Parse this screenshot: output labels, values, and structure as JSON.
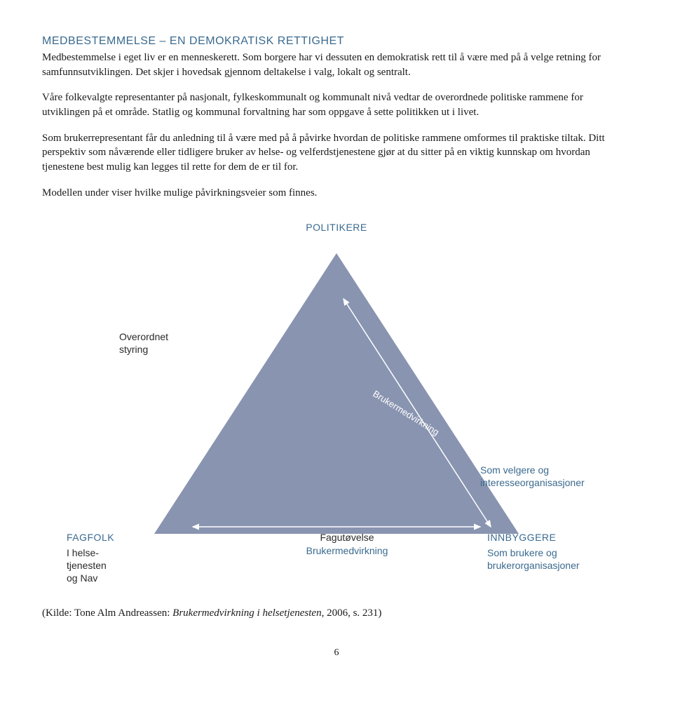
{
  "heading": "MEDBESTEMMELSE – EN DEMOKRATISK RETTIGHET",
  "para1": "Medbestemmelse i eget liv er en menneskerett. Som borgere har vi dessuten en demokratisk rett til å være med på å velge retning for samfunnsutviklingen. Det skjer i hovedsak gjennom deltakelse i valg, lokalt og sentralt.",
  "para2": "Våre folkevalgte representanter på nasjonalt, fylkeskommunalt og kommunalt nivå vedtar de overordnede politiske rammene for utviklingen på et område. Statlig og kommunal forvaltning har som oppgave å sette politikken ut i livet.",
  "para3": "Som brukerrepresentant får du anledning til å være med på å påvirke hvordan de politiske rammene omformes til praktiske tiltak. Ditt perspektiv som nåværende eller tidligere bruker av helse- og velferdstjenestene gjør at du sitter på en viktig kunnskap om hvordan tjenestene best mulig kan legges til rette for dem de er til for.",
  "para4": "Modellen under viser hvilke mulige påvirkningsveier som finnes.",
  "diagram": {
    "top_label": "POLITIKERE",
    "left_annotation": "Overordnet\nstyring",
    "diagonal_label": "Brukermedvirkning",
    "right_annotation": "Som velgere og\ninteresseorganisasjoner",
    "bottom_left_title": "FAGFOLK",
    "bottom_left_sub": "I helse-\ntjenesten\nog Nav",
    "bottom_center_line1": "Fagutøvelse",
    "bottom_center_line2": "Brukermedvirkning",
    "bottom_right_title": "INNBYGGERE",
    "bottom_right_sub": "Som brukere og\nbrukerorganisasjoner",
    "colors": {
      "triangle_fill": "#8994b0",
      "heading_color": "#3a6a8f",
      "body_color": "#1a1a1a",
      "arrow_color": "#ffffff"
    }
  },
  "source_prefix": "(Kilde: Tone Alm Andreassen: ",
  "source_italic": "Brukermedvirkning i helsetjenesten",
  "source_suffix": ", 2006, s. 231)",
  "page_number": "6"
}
